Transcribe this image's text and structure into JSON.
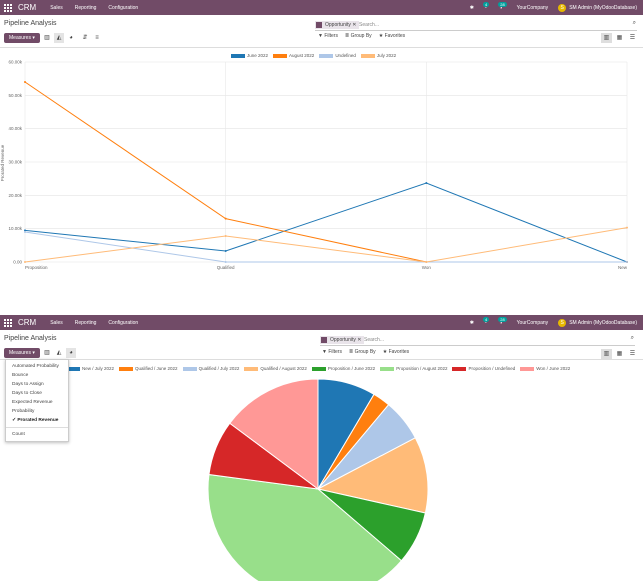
{
  "app": {
    "brand": "CRM",
    "menu": [
      "Sales",
      "Reporting",
      "Configuration"
    ],
    "company": "YourCompany",
    "user": "SM Admin (MyOdooDatabase)",
    "avatar_letter": "S",
    "badge_activity": "4",
    "badge_chat": "28",
    "nav_color": "#714B67"
  },
  "control_panel": {
    "title": "Pipeline Analysis",
    "measures_label": "Measures",
    "facet": "Opportunity",
    "search_placeholder": "Search...",
    "filters": "Filters",
    "group_by": "Group By",
    "favorites": "Favorites"
  },
  "line_view": {
    "chart_data": {
      "type": "line",
      "categories": [
        "Proposition",
        "Qualified",
        "Won",
        "New"
      ],
      "ylabel": "Prorated Revenue",
      "ylim": [
        0,
        60000
      ],
      "yticks": [
        "0.00",
        "10.00k",
        "20.00k",
        "30.00k",
        "40.00k",
        "50.00k",
        "60.00k"
      ],
      "legend_position": "top-center",
      "grid": true,
      "series": [
        {
          "name": "June 2022",
          "color": "#1f77b4",
          "values": [
            9500,
            3300,
            23700,
            0
          ]
        },
        {
          "name": "August 2022",
          "color": "#ff7f0e",
          "values": [
            54000,
            13000,
            0,
            0
          ]
        },
        {
          "name": "Undefined",
          "color": "#aec7e8",
          "values": [
            9000,
            0,
            0,
            0
          ]
        },
        {
          "name": "July 2022",
          "color": "#ffbb78",
          "values": [
            0,
            7800,
            0,
            10300
          ]
        }
      ]
    }
  },
  "pie_view": {
    "measure_menu": {
      "items": [
        "Automated Probability",
        "Bounce",
        "Days to Assign",
        "Days to Close",
        "Expected Revenue",
        "Probability",
        "Prorated Revenue"
      ],
      "selected": "Prorated Revenue",
      "extra": "Count"
    },
    "chart_data": {
      "type": "pie",
      "legend_position": "top",
      "labels": [
        "New / July 2022",
        "Qualified / June 2022",
        "Qualified / July 2022",
        "Qualified / August 2022",
        "Proposition / June 2022",
        "Proposition / August 2022",
        "Proposition / Undefined",
        "Won / June 2022"
      ],
      "colors": [
        "#1f77b4",
        "#ff7f0e",
        "#aec7e8",
        "#ffbb78",
        "#2ca02c",
        "#98df8a",
        "#d62728",
        "#ff9896"
      ],
      "values": [
        8.5,
        2.6,
        6.2,
        11.2,
        7.8,
        40.8,
        8.1,
        14.8
      ]
    }
  }
}
